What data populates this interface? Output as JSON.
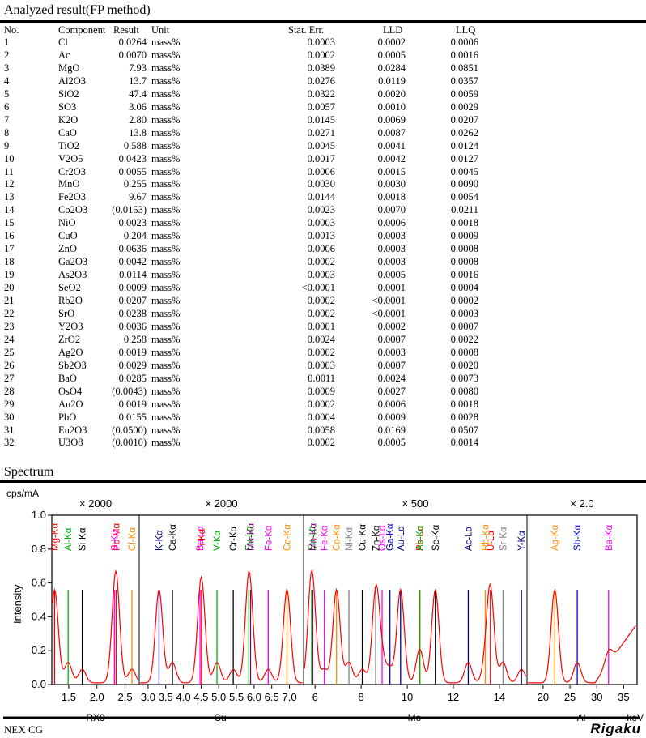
{
  "results": {
    "title": "Analyzed result(FP method)",
    "headers": {
      "no": "No.",
      "component": "Component",
      "result": "Result",
      "unit": "Unit",
      "stat_err": "Stat. Err.",
      "lld": "LLD",
      "llq": "LLQ"
    },
    "rows": [
      {
        "no": "1",
        "component": "Cl",
        "result": "0.0264",
        "unit": "mass%",
        "stat_err": "0.0003",
        "lld": "0.0002",
        "llq": "0.0006"
      },
      {
        "no": "2",
        "component": "Ac",
        "result": "0.0070",
        "unit": "mass%",
        "stat_err": "0.0002",
        "lld": "0.0005",
        "llq": "0.0016"
      },
      {
        "no": "3",
        "component": "MgO",
        "result": "7.93",
        "unit": "mass%",
        "stat_err": "0.0389",
        "lld": "0.0284",
        "llq": "0.0851"
      },
      {
        "no": "4",
        "component": "Al2O3",
        "result": "13.7",
        "unit": "mass%",
        "stat_err": "0.0276",
        "lld": "0.0119",
        "llq": "0.0357"
      },
      {
        "no": "5",
        "component": "SiO2",
        "result": "47.4",
        "unit": "mass%",
        "stat_err": "0.0322",
        "lld": "0.0020",
        "llq": "0.0059"
      },
      {
        "no": "6",
        "component": "SO3",
        "result": "3.06",
        "unit": "mass%",
        "stat_err": "0.0057",
        "lld": "0.0010",
        "llq": "0.0029"
      },
      {
        "no": "7",
        "component": "K2O",
        "result": "2.80",
        "unit": "mass%",
        "stat_err": "0.0145",
        "lld": "0.0069",
        "llq": "0.0207"
      },
      {
        "no": "8",
        "component": "CaO",
        "result": "13.8",
        "unit": "mass%",
        "stat_err": "0.0271",
        "lld": "0.0087",
        "llq": "0.0262"
      },
      {
        "no": "9",
        "component": "TiO2",
        "result": "0.588",
        "unit": "mass%",
        "stat_err": "0.0045",
        "lld": "0.0041",
        "llq": "0.0124"
      },
      {
        "no": "10",
        "component": "V2O5",
        "result": "0.0423",
        "unit": "mass%",
        "stat_err": "0.0017",
        "lld": "0.0042",
        "llq": "0.0127"
      },
      {
        "no": "11",
        "component": "Cr2O3",
        "result": "0.0055",
        "unit": "mass%",
        "stat_err": "0.0006",
        "lld": "0.0015",
        "llq": "0.0045"
      },
      {
        "no": "12",
        "component": "MnO",
        "result": "0.255",
        "unit": "mass%",
        "stat_err": "0.0030",
        "lld": "0.0030",
        "llq": "0.0090"
      },
      {
        "no": "13",
        "component": "Fe2O3",
        "result": "9.67",
        "unit": "mass%",
        "stat_err": "0.0144",
        "lld": "0.0018",
        "llq": "0.0054"
      },
      {
        "no": "14",
        "component": "Co2O3",
        "result": "(0.0153)",
        "unit": "mass%",
        "stat_err": "0.0023",
        "lld": "0.0070",
        "llq": "0.0211"
      },
      {
        "no": "15",
        "component": "NiO",
        "result": "0.0023",
        "unit": "mass%",
        "stat_err": "0.0003",
        "lld": "0.0006",
        "llq": "0.0018"
      },
      {
        "no": "16",
        "component": "CuO",
        "result": "0.204",
        "unit": "mass%",
        "stat_err": "0.0013",
        "lld": "0.0003",
        "llq": "0.0009"
      },
      {
        "no": "17",
        "component": "ZnO",
        "result": "0.0636",
        "unit": "mass%",
        "stat_err": "0.0006",
        "lld": "0.0003",
        "llq": "0.0008"
      },
      {
        "no": "18",
        "component": "Ga2O3",
        "result": "0.0042",
        "unit": "mass%",
        "stat_err": "0.0002",
        "lld": "0.0003",
        "llq": "0.0008"
      },
      {
        "no": "19",
        "component": "As2O3",
        "result": "0.0114",
        "unit": "mass%",
        "stat_err": "0.0003",
        "lld": "0.0005",
        "llq": "0.0016"
      },
      {
        "no": "20",
        "component": "SeO2",
        "result": "0.0009",
        "unit": "mass%",
        "stat_err": "<0.0001",
        "lld": "0.0001",
        "llq": "0.0004"
      },
      {
        "no": "21",
        "component": "Rb2O",
        "result": "0.0207",
        "unit": "mass%",
        "stat_err": "0.0002",
        "lld": "<0.0001",
        "llq": "0.0002"
      },
      {
        "no": "22",
        "component": "SrO",
        "result": "0.0238",
        "unit": "mass%",
        "stat_err": "0.0002",
        "lld": "<0.0001",
        "llq": "0.0003"
      },
      {
        "no": "23",
        "component": "Y2O3",
        "result": "0.0036",
        "unit": "mass%",
        "stat_err": "0.0001",
        "lld": "0.0002",
        "llq": "0.0007"
      },
      {
        "no": "24",
        "component": "ZrO2",
        "result": "0.258",
        "unit": "mass%",
        "stat_err": "0.0024",
        "lld": "0.0007",
        "llq": "0.0022"
      },
      {
        "no": "25",
        "component": "Ag2O",
        "result": "0.0019",
        "unit": "mass%",
        "stat_err": "0.0002",
        "lld": "0.0003",
        "llq": "0.0008"
      },
      {
        "no": "26",
        "component": "Sb2O3",
        "result": "0.0029",
        "unit": "mass%",
        "stat_err": "0.0003",
        "lld": "0.0007",
        "llq": "0.0020"
      },
      {
        "no": "27",
        "component": "BaO",
        "result": "0.0285",
        "unit": "mass%",
        "stat_err": "0.0011",
        "lld": "0.0024",
        "llq": "0.0073"
      },
      {
        "no": "28",
        "component": "OsO4",
        "result": "(0.0043)",
        "unit": "mass%",
        "stat_err": "0.0009",
        "lld": "0.0027",
        "llq": "0.0080"
      },
      {
        "no": "29",
        "component": "Au2O",
        "result": "0.0019",
        "unit": "mass%",
        "stat_err": "0.0002",
        "lld": "0.0006",
        "llq": "0.0018"
      },
      {
        "no": "30",
        "component": "PbO",
        "result": "0.0155",
        "unit": "mass%",
        "stat_err": "0.0004",
        "lld": "0.0009",
        "llq": "0.0028"
      },
      {
        "no": "31",
        "component": "Eu2O3",
        "result": "(0.0500)",
        "unit": "mass%",
        "stat_err": "0.0058",
        "lld": "0.0169",
        "llq": "0.0507"
      },
      {
        "no": "32",
        "component": "U3O8",
        "result": "(0.0010)",
        "unit": "mass%",
        "stat_err": "0.0002",
        "lld": "0.0005",
        "llq": "0.0014"
      }
    ]
  },
  "spectrum": {
    "title": "Spectrum",
    "y_unit": "cps/mA",
    "y_axis_label": "Intensity",
    "y_ticks": [
      "0.0",
      "0.2",
      "0.4",
      "0.6",
      "0.8",
      "1.0"
    ],
    "x_unit": "keV",
    "colors": {
      "red": "#ff0000",
      "green": "#00b000",
      "black": "#000000",
      "blue": "#0000c8",
      "navy": "#000080",
      "magenta": "#ff00ff",
      "orange": "#ff8c00",
      "purple": "#800080",
      "gray": "#808080",
      "curve": "#ff0000"
    },
    "panels": [
      {
        "multiplier": "× 2000",
        "ticks": [
          "1.5",
          "2.0",
          "2.5"
        ],
        "xmin": 1.2,
        "xmax": 2.75,
        "labels": [
          {
            "text": "Mg-Kα",
            "color": "red",
            "x": 1.25
          },
          {
            "text": "Al-Kα",
            "color": "green",
            "x": 1.49
          },
          {
            "text": "Si-Kα",
            "color": "black",
            "x": 1.74
          },
          {
            "text": "Pb-Mα",
            "color": "red",
            "x": 2.34
          },
          {
            "text": "S-Kα",
            "color": "magenta",
            "x": 2.31
          },
          {
            "text": "Cl-Kα",
            "color": "orange",
            "x": 2.62
          }
        ]
      },
      {
        "multiplier": "× 2000",
        "ticks": [
          "3.0",
          "3.5",
          "4.0",
          "4.5",
          "5.0",
          "5.5",
          "6.0",
          "6.5",
          "7.0"
        ],
        "xmin": 2.75,
        "xmax": 7.4,
        "labels": [
          {
            "text": "K-Kα",
            "color": "navy",
            "x": 3.31
          },
          {
            "text": "Ca-Kα",
            "color": "black",
            "x": 3.69
          },
          {
            "text": "Ba-Lα",
            "color": "magenta",
            "x": 4.47
          },
          {
            "text": "Ti-Kα",
            "color": "red",
            "x": 4.51
          },
          {
            "text": "V-Kα",
            "color": "green",
            "x": 4.95
          },
          {
            "text": "Cr-Kα",
            "color": "black",
            "x": 5.41
          },
          {
            "text": "Eu-Lα",
            "color": "green",
            "x": 5.85
          },
          {
            "text": "Mn-Kα",
            "color": "purple",
            "x": 5.9
          },
          {
            "text": "Fe-Kα",
            "color": "magenta",
            "x": 6.4
          },
          {
            "text": "Co-Kα",
            "color": "orange",
            "x": 6.93
          }
        ]
      },
      {
        "multiplier": "× 500",
        "ticks": [
          "6",
          "8",
          "10",
          "12",
          "14"
        ],
        "xmin": 5.5,
        "xmax": 15.2,
        "labels": [
          {
            "text": "Eu-Lα",
            "color": "green",
            "x": 5.85
          },
          {
            "text": "Mn-Kα",
            "color": "purple",
            "x": 5.9
          },
          {
            "text": "Fe-Kα",
            "color": "magenta",
            "x": 6.4
          },
          {
            "text": "Co-Kα",
            "color": "orange",
            "x": 6.93
          },
          {
            "text": "Ni-Kα",
            "color": "gray",
            "x": 7.47
          },
          {
            "text": "Cu-Kα",
            "color": "black",
            "x": 8.05
          },
          {
            "text": "Zn-Kα",
            "color": "black",
            "x": 8.64
          },
          {
            "text": "Os-Lα",
            "color": "magenta",
            "x": 8.91
          },
          {
            "text": "Ga-Kα",
            "color": "blue",
            "x": 9.25
          },
          {
            "text": "Au-Lα",
            "color": "navy",
            "x": 9.71
          },
          {
            "text": "Pb-Lα",
            "color": "red",
            "x": 10.55
          },
          {
            "text": "As-Kα",
            "color": "green",
            "x": 10.54
          },
          {
            "text": "Se-Kα",
            "color": "black",
            "x": 11.22
          },
          {
            "text": "Ac-Lα",
            "color": "navy",
            "x": 12.65
          },
          {
            "text": "Rb-Kα",
            "color": "orange",
            "x": 13.39
          },
          {
            "text": "U-Lα",
            "color": "red",
            "x": 13.61
          },
          {
            "text": "Sr-Kα",
            "color": "gray",
            "x": 14.16
          },
          {
            "text": "Y-Kα",
            "color": "navy",
            "x": 14.96
          }
        ]
      },
      {
        "multiplier": "× 2.0",
        "ticks": [
          "20",
          "25",
          "30",
          "35"
        ],
        "xmin": 17.0,
        "xmax": 37.5,
        "labels": [
          {
            "text": "Ag-Kα",
            "color": "orange",
            "x": 22.16
          },
          {
            "text": "Sb-Kα",
            "color": "blue",
            "x": 26.36
          },
          {
            "text": "Ba-Kα",
            "color": "magenta",
            "x": 32.19
          }
        ]
      }
    ],
    "filters": [
      "RX9",
      "Cu",
      "Mo",
      "Al"
    ]
  },
  "footer": {
    "left": "NEX CG",
    "brand": "Rigaku"
  }
}
